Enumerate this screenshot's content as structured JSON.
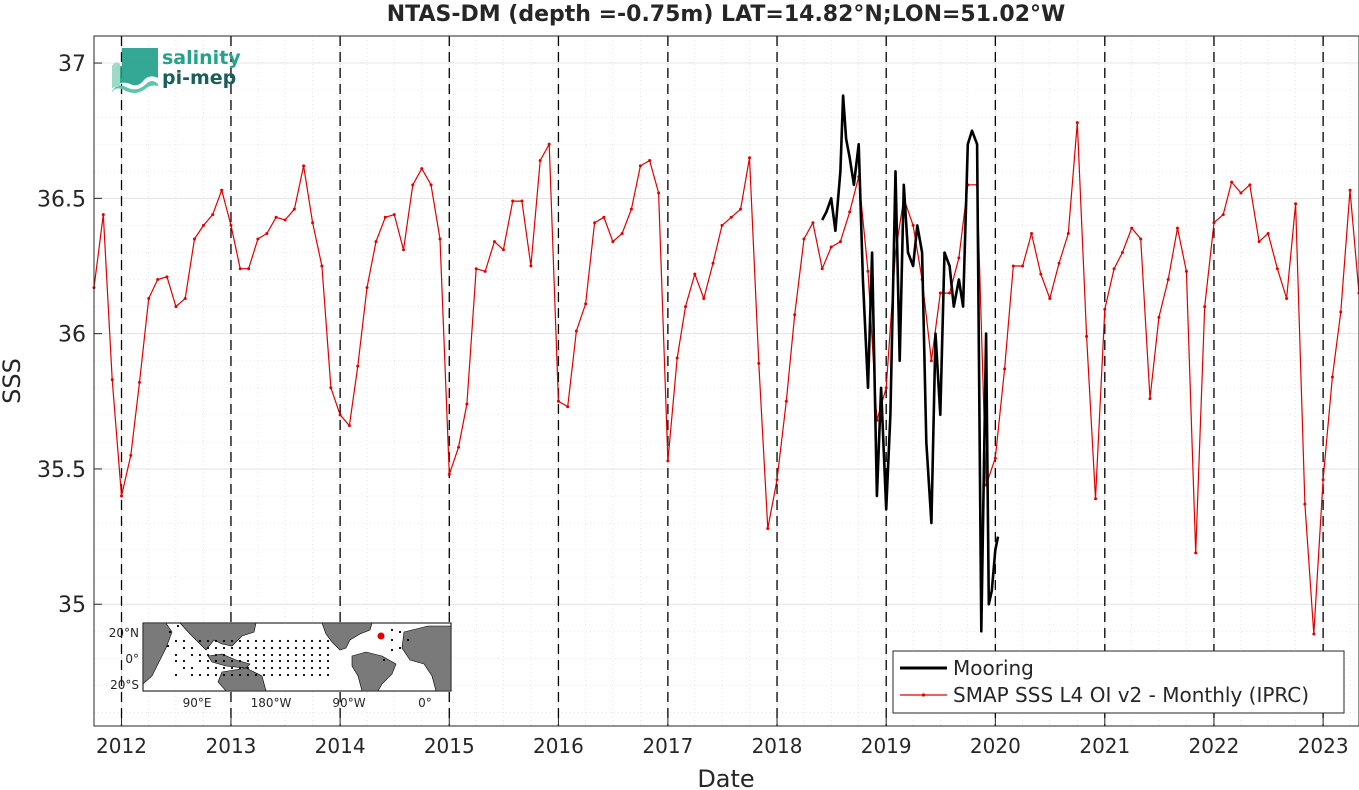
{
  "chart_data": {
    "type": "line",
    "title": "NTAS-DM (depth =-0.75m) LAT=14.82°N;LON=51.02°W",
    "xlabel": "Date",
    "ylabel": "SSS",
    "xlim": [
      "2011-10-01",
      "2023-05-01"
    ],
    "ylim": [
      34.55,
      37.1
    ],
    "grid": true,
    "minor_grid": true,
    "x_ticks": [
      "2012",
      "2013",
      "2014",
      "2015",
      "2016",
      "2017",
      "2018",
      "2019",
      "2020",
      "2021",
      "2022",
      "2023"
    ],
    "y_ticks": [
      "35",
      "35.5",
      "36",
      "36.5",
      "37"
    ],
    "legend_position": "bottom-right",
    "series": [
      {
        "name": "Mooring",
        "color": "#000000",
        "x": [
          "2018-06-01",
          "2018-06-15",
          "2018-07-01",
          "2018-07-15",
          "2018-08-01",
          "2018-08-10",
          "2018-08-20",
          "2018-09-01",
          "2018-09-15",
          "2018-10-01",
          "2018-10-15",
          "2018-11-01",
          "2018-11-15",
          "2018-12-01",
          "2018-12-15",
          "2019-01-01",
          "2019-01-15",
          "2019-02-01",
          "2019-02-15",
          "2019-03-01",
          "2019-03-15",
          "2019-04-01",
          "2019-04-15",
          "2019-05-01",
          "2019-05-15",
          "2019-06-01",
          "2019-06-15",
          "2019-07-01",
          "2019-07-15",
          "2019-08-01",
          "2019-08-15",
          "2019-09-01",
          "2019-09-15",
          "2019-10-01",
          "2019-10-15",
          "2019-11-01",
          "2019-11-15",
          "2019-12-01",
          "2019-12-10",
          "2019-12-20",
          "2020-01-01",
          "2020-01-10"
        ],
        "values": [
          36.42,
          36.45,
          36.5,
          36.38,
          36.6,
          36.88,
          36.72,
          36.65,
          36.55,
          36.7,
          36.2,
          35.8,
          36.3,
          35.4,
          35.8,
          35.35,
          35.7,
          36.6,
          35.9,
          36.55,
          36.3,
          36.25,
          36.4,
          36.3,
          35.6,
          35.3,
          36.0,
          35.7,
          36.3,
          36.25,
          36.1,
          36.2,
          36.1,
          36.7,
          36.75,
          36.7,
          34.9,
          36.0,
          35.0,
          35.05,
          35.2,
          35.25
        ]
      },
      {
        "name": "SMAP SSS L4 OI v2 - Monthly (IPRC)",
        "color": "#e00000",
        "x": [
          "2011-10-01",
          "2011-11-01",
          "2011-12-01",
          "2012-01-01",
          "2012-02-01",
          "2012-03-01",
          "2012-04-01",
          "2012-05-01",
          "2012-06-01",
          "2012-07-01",
          "2012-08-01",
          "2012-09-01",
          "2012-10-01",
          "2012-11-01",
          "2012-12-01",
          "2013-01-01",
          "2013-02-01",
          "2013-03-01",
          "2013-04-01",
          "2013-05-01",
          "2013-06-01",
          "2013-07-01",
          "2013-08-01",
          "2013-09-01",
          "2013-10-01",
          "2013-11-01",
          "2013-12-01",
          "2014-01-01",
          "2014-02-01",
          "2014-03-01",
          "2014-04-01",
          "2014-05-01",
          "2014-06-01",
          "2014-07-01",
          "2014-08-01",
          "2014-09-01",
          "2014-10-01",
          "2014-11-01",
          "2014-12-01",
          "2015-01-01",
          "2015-02-01",
          "2015-03-01",
          "2015-04-01",
          "2015-05-01",
          "2015-06-01",
          "2015-07-01",
          "2015-08-01",
          "2015-09-01",
          "2015-10-01",
          "2015-11-01",
          "2015-12-01",
          "2016-01-01",
          "2016-02-01",
          "2016-03-01",
          "2016-04-01",
          "2016-05-01",
          "2016-06-01",
          "2016-07-01",
          "2016-08-01",
          "2016-09-01",
          "2016-10-01",
          "2016-11-01",
          "2016-12-01",
          "2017-01-01",
          "2017-02-01",
          "2017-03-01",
          "2017-04-01",
          "2017-05-01",
          "2017-06-01",
          "2017-07-01",
          "2017-08-01",
          "2017-09-01",
          "2017-10-01",
          "2017-11-01",
          "2017-12-01",
          "2018-01-01",
          "2018-02-01",
          "2018-03-01",
          "2018-04-01",
          "2018-05-01",
          "2018-06-01",
          "2018-07-01",
          "2018-08-01",
          "2018-09-01",
          "2018-10-01",
          "2018-11-01",
          "2018-12-01",
          "2019-01-01",
          "2019-02-01",
          "2019-03-01",
          "2019-04-01",
          "2019-05-01",
          "2019-06-01",
          "2019-07-01",
          "2019-08-01",
          "2019-09-01",
          "2019-10-01",
          "2019-11-01",
          "2019-12-01",
          "2020-01-01",
          "2020-02-01",
          "2020-03-01",
          "2020-04-01",
          "2020-05-01",
          "2020-06-01",
          "2020-07-01",
          "2020-08-01",
          "2020-09-01",
          "2020-10-01",
          "2020-11-01",
          "2020-12-01",
          "2021-01-01",
          "2021-02-01",
          "2021-03-01",
          "2021-04-01",
          "2021-05-01",
          "2021-06-01",
          "2021-07-01",
          "2021-08-01",
          "2021-09-01",
          "2021-10-01",
          "2021-11-01",
          "2021-12-01",
          "2022-01-01",
          "2022-02-01",
          "2022-03-01",
          "2022-04-01",
          "2022-05-01",
          "2022-06-01",
          "2022-07-01",
          "2022-08-01",
          "2022-09-01",
          "2022-10-01",
          "2022-11-01",
          "2022-12-01",
          "2023-01-01",
          "2023-02-01",
          "2023-03-01",
          "2023-04-01",
          "2023-05-01"
        ],
        "values": [
          36.17,
          36.44,
          35.83,
          35.4,
          35.55,
          35.82,
          36.13,
          36.2,
          36.21,
          36.1,
          36.13,
          36.35,
          36.4,
          36.44,
          36.53,
          36.4,
          36.24,
          36.24,
          36.35,
          36.37,
          36.43,
          36.42,
          36.46,
          36.62,
          36.41,
          36.25,
          35.8,
          35.7,
          35.66,
          35.88,
          36.17,
          36.34,
          36.43,
          36.44,
          36.31,
          36.55,
          36.61,
          36.55,
          36.35,
          35.48,
          35.58,
          35.74,
          36.24,
          36.23,
          36.34,
          36.31,
          36.49,
          36.49,
          36.25,
          36.64,
          36.7,
          35.75,
          35.73,
          36.01,
          36.11,
          36.41,
          36.43,
          36.34,
          36.37,
          36.46,
          36.62,
          36.64,
          36.52,
          35.53,
          35.91,
          36.1,
          36.22,
          36.13,
          36.26,
          36.4,
          36.43,
          36.46,
          36.65,
          35.89,
          35.28,
          35.46,
          35.75,
          36.07,
          36.35,
          36.41,
          36.24,
          36.32,
          36.34,
          36.45,
          36.58,
          36.23,
          35.68,
          35.8,
          36.3,
          36.5,
          36.4,
          36.2,
          35.9,
          36.15,
          36.15,
          36.28,
          36.55,
          36.55,
          35.44,
          35.54,
          35.87,
          36.25,
          36.25,
          36.37,
          36.22,
          36.13,
          36.26,
          36.37,
          36.78,
          35.99,
          35.39,
          36.09,
          36.24,
          36.3,
          36.39,
          36.35,
          35.76,
          36.06,
          36.2,
          36.39,
          36.23,
          35.19,
          36.1,
          36.41,
          36.44,
          36.56,
          36.52,
          36.55,
          36.34,
          36.37,
          36.24,
          36.13,
          36.48,
          35.37,
          34.89,
          35.46,
          35.84,
          36.08,
          36.53,
          36.15
        ]
      }
    ]
  },
  "logo": {
    "line1": "salinity",
    "line2": "pi-mep"
  },
  "inset_map": {
    "lon_labels": [
      "90°E",
      "180°W",
      "90°W",
      "0°"
    ],
    "lat_labels": [
      "20°N",
      "0°",
      "20°S"
    ],
    "station_color": "#e00000"
  }
}
